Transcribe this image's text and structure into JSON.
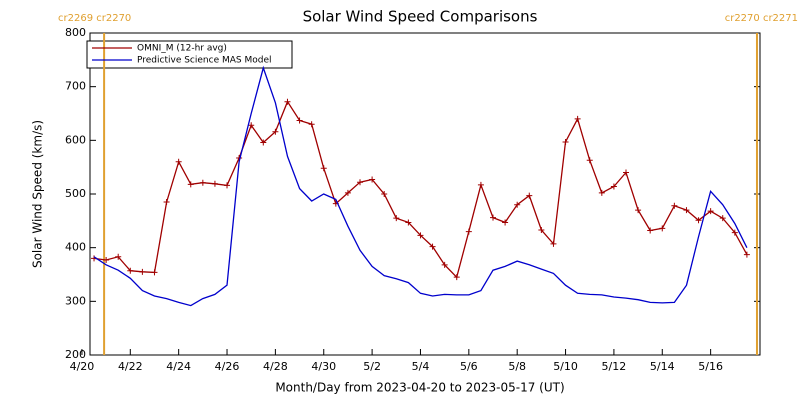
{
  "chart_data": {
    "type": "line",
    "title": "Solar Wind Speed Comparisons",
    "xlabel": "Month/Day from 2023-04-20 to 2023-05-17 (UT)",
    "ylabel": "Solar Wind Speed (km/s)",
    "xlim": [
      "2023-04-20T08:00",
      "2023-05-18T01:00"
    ],
    "xticks": [
      {
        "value": "2023-04-20T00:00",
        "label": "4/20"
      },
      {
        "value": "2023-04-22T00:00",
        "label": "4/22"
      },
      {
        "value": "2023-04-24T00:00",
        "label": "4/24"
      },
      {
        "value": "2023-04-26T00:00",
        "label": "4/26"
      },
      {
        "value": "2023-04-28T00:00",
        "label": "4/28"
      },
      {
        "value": "2023-04-30T00:00",
        "label": "4/30"
      },
      {
        "value": "2023-05-02T00:00",
        "label": "5/2"
      },
      {
        "value": "2023-05-04T00:00",
        "label": "5/4"
      },
      {
        "value": "2023-05-06T00:00",
        "label": "5/6"
      },
      {
        "value": "2023-05-08T00:00",
        "label": "5/8"
      },
      {
        "value": "2023-05-10T00:00",
        "label": "5/10"
      },
      {
        "value": "2023-05-12T00:00",
        "label": "5/12"
      },
      {
        "value": "2023-05-14T00:00",
        "label": "5/14"
      },
      {
        "value": "2023-05-16T00:00",
        "label": "5/16"
      }
    ],
    "ylim": [
      200,
      800
    ],
    "yticks": [
      200,
      300,
      400,
      500,
      600,
      700,
      800
    ],
    "annotations": [
      {
        "text": "cr2269 cr2270",
        "x": "2023-04-20T22:00"
      },
      {
        "text": "cr2270 cr2271",
        "x": "2023-05-17T22:00"
      }
    ],
    "annotation_color": "#e0a030",
    "x": [
      "2023-04-20T12:00",
      "2023-04-21T00:00",
      "2023-04-21T12:00",
      "2023-04-22T00:00",
      "2023-04-22T12:00",
      "2023-04-23T00:00",
      "2023-04-23T12:00",
      "2023-04-24T00:00",
      "2023-04-24T12:00",
      "2023-04-25T00:00",
      "2023-04-25T12:00",
      "2023-04-26T00:00",
      "2023-04-26T12:00",
      "2023-04-27T00:00",
      "2023-04-27T12:00",
      "2023-04-28T00:00",
      "2023-04-28T12:00",
      "2023-04-29T00:00",
      "2023-04-29T12:00",
      "2023-04-30T00:00",
      "2023-04-30T12:00",
      "2023-05-01T00:00",
      "2023-05-01T12:00",
      "2023-05-02T00:00",
      "2023-05-02T12:00",
      "2023-05-03T00:00",
      "2023-05-03T12:00",
      "2023-05-04T00:00",
      "2023-05-04T12:00",
      "2023-05-05T00:00",
      "2023-05-05T12:00",
      "2023-05-06T00:00",
      "2023-05-06T12:00",
      "2023-05-07T00:00",
      "2023-05-07T12:00",
      "2023-05-08T00:00",
      "2023-05-08T12:00",
      "2023-05-09T00:00",
      "2023-05-09T12:00",
      "2023-05-10T00:00",
      "2023-05-10T12:00",
      "2023-05-11T00:00",
      "2023-05-11T12:00",
      "2023-05-12T00:00",
      "2023-05-12T12:00",
      "2023-05-13T00:00",
      "2023-05-13T12:00",
      "2023-05-14T00:00",
      "2023-05-14T12:00",
      "2023-05-15T00:00",
      "2023-05-15T12:00",
      "2023-05-16T00:00",
      "2023-05-16T12:00",
      "2023-05-17T00:00",
      "2023-05-17T12:00"
    ],
    "series": [
      {
        "name": "OMNI_M (12-hr avg)",
        "color": "#a00000",
        "markers": true,
        "values": [
          380,
          377,
          383,
          357,
          355,
          354,
          485,
          560,
          518,
          521,
          519,
          516,
          567,
          628,
          596,
          616,
          672,
          637,
          630,
          548,
          482,
          502,
          522,
          527,
          500,
          455,
          447,
          423,
          402,
          368,
          345,
          430,
          517,
          456,
          447,
          480,
          497,
          433,
          407,
          597,
          640,
          563,
          502,
          514,
          540,
          470,
          432,
          436,
          478,
          470,
          451,
          468,
          455,
          428,
          387
        ]
      },
      {
        "name": "Predictive Science MAS Model",
        "color": "#0000cc",
        "markers": false,
        "values": [
          383,
          368,
          358,
          343,
          320,
          310,
          305,
          298,
          292,
          305,
          313,
          330,
          560,
          650,
          735,
          670,
          570,
          510,
          487,
          500,
          490,
          440,
          395,
          365,
          348,
          342,
          335,
          315,
          310,
          313,
          312,
          312,
          320,
          358,
          365,
          375,
          368,
          360,
          352,
          330,
          315,
          313,
          312,
          308,
          306,
          303,
          298,
          297,
          298,
          330,
          420,
          505,
          480,
          445,
          400
        ]
      }
    ]
  }
}
